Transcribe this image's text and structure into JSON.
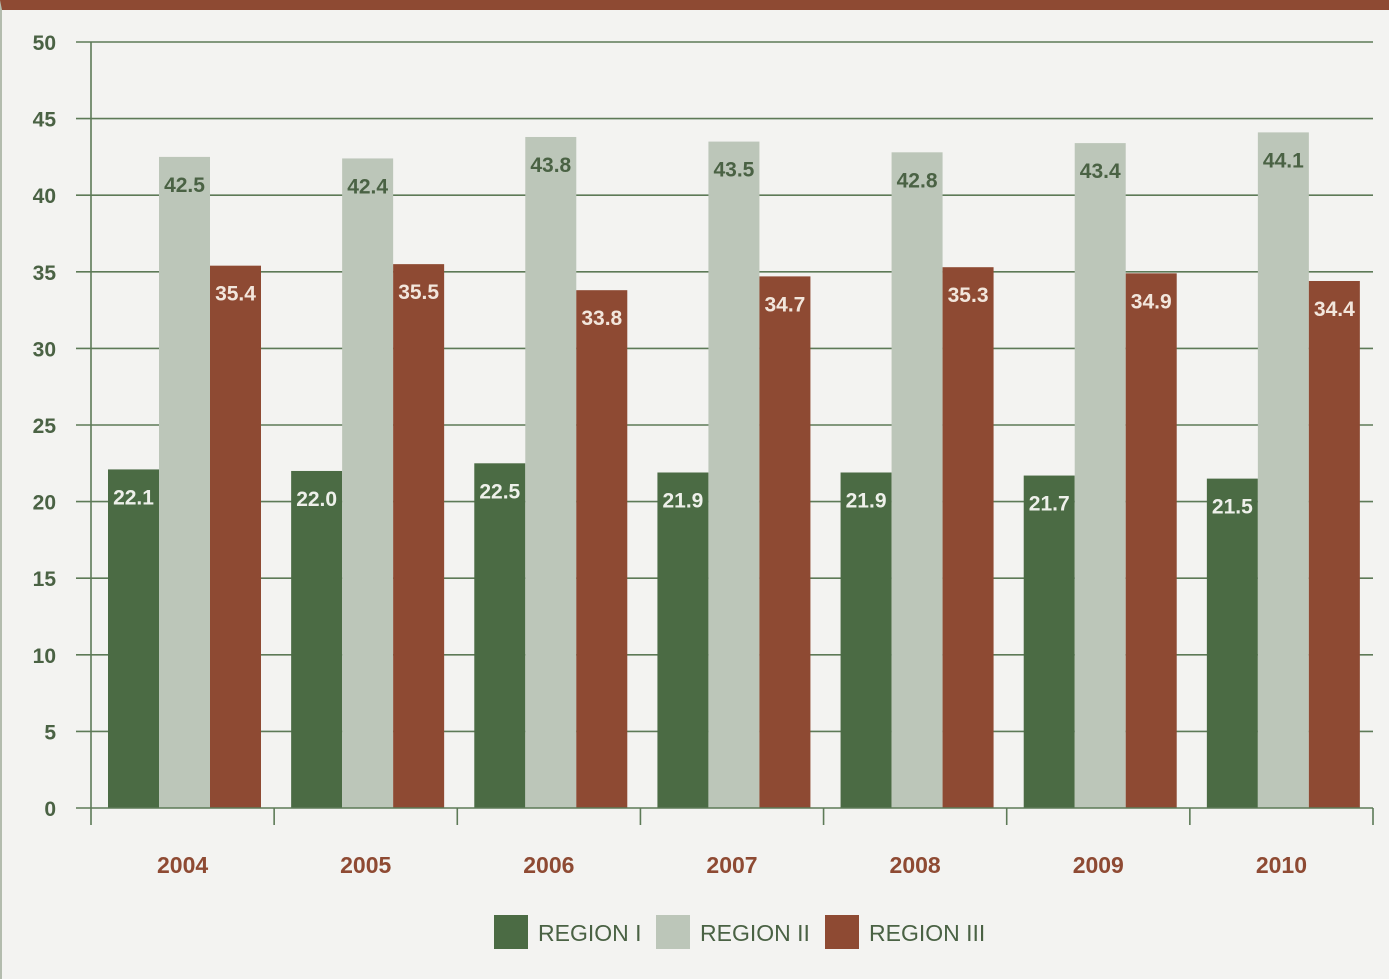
{
  "chart_data": {
    "type": "bar",
    "title": "",
    "xlabel": "",
    "ylabel": "",
    "categories": [
      "2004",
      "2005",
      "2006",
      "2007",
      "2008",
      "2009",
      "2010"
    ],
    "series": [
      {
        "name": "REGION I",
        "color": "#4b6b44",
        "label_color": "#eef0ea",
        "values": [
          22.1,
          22.0,
          22.5,
          21.9,
          21.9,
          21.7,
          21.5
        ]
      },
      {
        "name": "REGION II",
        "color": "#bcc6b9",
        "label_color": "#4a6244",
        "values": [
          42.5,
          42.4,
          43.8,
          43.5,
          42.8,
          43.4,
          44.1
        ]
      },
      {
        "name": "REGION III",
        "color": "#8e4a33",
        "label_color": "#f2e6dc",
        "values": [
          35.4,
          35.5,
          33.8,
          34.7,
          35.3,
          34.9,
          34.4
        ]
      }
    ],
    "ylim": [
      0,
      50
    ],
    "yticks": [
      "0",
      "5",
      "10",
      "15",
      "20",
      "25",
      "30",
      "35",
      "40",
      "45",
      "50"
    ],
    "grid": true,
    "legend_position": "bottom-center",
    "colors": {
      "grid": "#5d7a57",
      "axis": "#5d7a57",
      "ytick_text": "#4a6244",
      "xtick_text": "#8e4a33",
      "top_border": "#8e4a33",
      "background": "#f3f3f1"
    }
  }
}
